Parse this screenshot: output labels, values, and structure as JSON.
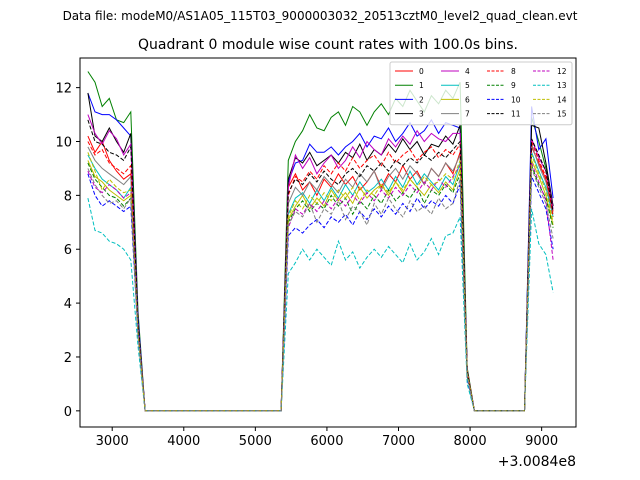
{
  "chart_data": {
    "type": "line",
    "suptitle": "Data file: modeM0/AS1A05_115T03_9000003032_20513cztM0_level2_quad_clean.evt",
    "title": "Quadrant 0 module wise count rates with 100.0s bins.",
    "xlabel": "",
    "ylabel": "",
    "x_offset_label": "+3.0084e8",
    "xlim": [
      2550,
      9480
    ],
    "ylim": [
      -0.6,
      13.1
    ],
    "xticks": [
      3000,
      4000,
      5000,
      6000,
      7000,
      8000,
      9000
    ],
    "yticks": [
      0,
      2,
      4,
      6,
      8,
      10,
      12
    ],
    "x": [
      2660,
      2760,
      2860,
      2960,
      3060,
      3160,
      3260,
      3360,
      3460,
      3560,
      3660,
      3760,
      3860,
      3960,
      4060,
      4160,
      4260,
      4360,
      4460,
      4560,
      4660,
      4760,
      4860,
      4960,
      5060,
      5160,
      5260,
      5360,
      5460,
      5560,
      5660,
      5760,
      5860,
      5960,
      6060,
      6160,
      6260,
      6360,
      6460,
      6560,
      6660,
      6760,
      6860,
      6960,
      7060,
      7160,
      7260,
      7360,
      7460,
      7560,
      7660,
      7760,
      7860,
      7960,
      8060,
      8160,
      8260,
      8360,
      8460,
      8560,
      8660,
      8760,
      8860,
      8960,
      9060,
      9160
    ],
    "legend_position": "top-right",
    "legend_columns": 4,
    "series": [
      {
        "name": "0",
        "color": "#ff0000",
        "dash": "solid",
        "values": [
          10.2,
          9.6,
          10.0,
          9.3,
          8.9,
          8.6,
          8.8,
          3.2,
          0,
          0,
          0,
          0,
          0,
          0,
          0,
          0,
          0,
          0,
          0,
          0,
          0,
          0,
          0,
          0,
          0,
          0,
          0,
          0,
          8.3,
          8.8,
          8.2,
          8.5,
          8.0,
          8.6,
          8.3,
          8.8,
          8.4,
          8.7,
          8.2,
          8.5,
          8.9,
          8.3,
          8.8,
          8.5,
          9.1,
          8.6,
          8.9,
          8.4,
          9.0,
          8.7,
          9.2,
          8.8,
          9.6,
          1.4,
          0,
          0,
          0,
          0,
          0,
          0,
          0,
          0,
          9.8,
          9.2,
          8.6,
          7.4
        ]
      },
      {
        "name": "1",
        "color": "#008000",
        "dash": "solid",
        "values": [
          12.6,
          12.2,
          11.3,
          11.6,
          10.8,
          10.7,
          11.1,
          3.7,
          0,
          0,
          0,
          0,
          0,
          0,
          0,
          0,
          0,
          0,
          0,
          0,
          0,
          0,
          0,
          0,
          0,
          0,
          0,
          0,
          9.3,
          10.0,
          10.4,
          11.0,
          10.5,
          10.4,
          10.9,
          11.1,
          10.6,
          11.3,
          11.1,
          10.6,
          11.1,
          11.4,
          11.0,
          11.6,
          11.3,
          11.9,
          11.5,
          11.1,
          11.7,
          11.4,
          11.9,
          11.6,
          12.2,
          1.6,
          0,
          0,
          0,
          0,
          0,
          0,
          0,
          0,
          10.9,
          10.0,
          9.0,
          7.6
        ]
      },
      {
        "name": "2",
        "color": "#0000ff",
        "dash": "solid",
        "values": [
          11.8,
          11.1,
          11.0,
          11.0,
          10.8,
          10.5,
          10.2,
          3.5,
          0,
          0,
          0,
          0,
          0,
          0,
          0,
          0,
          0,
          0,
          0,
          0,
          0,
          0,
          0,
          0,
          0,
          0,
          0,
          0,
          8.5,
          9.2,
          9.3,
          9.9,
          9.6,
          9.6,
          9.8,
          9.5,
          9.8,
          10.0,
          10.3,
          9.8,
          10.2,
          10.1,
          10.5,
          10.0,
          10.3,
          10.7,
          10.2,
          10.4,
          10.8,
          10.3,
          10.7,
          10.6,
          10.5,
          1.5,
          0,
          0,
          0,
          0,
          0,
          0,
          0,
          0,
          11.3,
          9.7,
          10.1,
          7.9
        ]
      },
      {
        "name": "3",
        "color": "#000000",
        "dash": "solid",
        "values": [
          11.8,
          10.2,
          10.0,
          10.5,
          10.0,
          9.6,
          10.3,
          3.3,
          0,
          0,
          0,
          0,
          0,
          0,
          0,
          0,
          0,
          0,
          0,
          0,
          0,
          0,
          0,
          0,
          0,
          0,
          0,
          0,
          8.6,
          9.4,
          9.2,
          9.6,
          9.1,
          9.3,
          9.5,
          9.2,
          9.6,
          9.4,
          9.9,
          9.3,
          9.7,
          9.5,
          9.9,
          9.6,
          10.1,
          9.7,
          10.0,
          9.5,
          9.9,
          9.8,
          10.2,
          9.9,
          10.6,
          1.5,
          0,
          0,
          0,
          0,
          0,
          0,
          0,
          0,
          10.6,
          10.5,
          9.2,
          7.6
        ]
      },
      {
        "name": "4",
        "color": "#bf00bf",
        "dash": "solid",
        "values": [
          11.0,
          10.3,
          9.9,
          10.4,
          10.1,
          9.5,
          9.9,
          3.3,
          0,
          0,
          0,
          0,
          0,
          0,
          0,
          0,
          0,
          0,
          0,
          0,
          0,
          0,
          0,
          0,
          0,
          0,
          0,
          0,
          8.3,
          9.5,
          9.0,
          9.4,
          8.8,
          9.2,
          9.5,
          9.0,
          9.3,
          9.8,
          9.4,
          10.0,
          9.7,
          9.5,
          10.1,
          9.8,
          10.2,
          9.9,
          10.4,
          10.0,
          10.3,
          10.1,
          10.0,
          10.3,
          10.3,
          1.5,
          0,
          0,
          0,
          0,
          0,
          0,
          0,
          0,
          10.1,
          9.4,
          8.9,
          7.5
        ]
      },
      {
        "name": "5",
        "color": "#00bfbf",
        "dash": "solid",
        "values": [
          9.5,
          9.0,
          8.6,
          8.4,
          8.2,
          7.9,
          8.3,
          3.0,
          0,
          0,
          0,
          0,
          0,
          0,
          0,
          0,
          0,
          0,
          0,
          0,
          0,
          0,
          0,
          0,
          0,
          0,
          0,
          0,
          7.3,
          7.9,
          8.1,
          7.7,
          8.2,
          7.8,
          8.3,
          7.9,
          8.4,
          8.0,
          8.5,
          8.1,
          8.3,
          8.6,
          8.2,
          8.7,
          8.3,
          8.9,
          8.4,
          8.8,
          8.5,
          8.2,
          8.7,
          8.4,
          9.2,
          1.3,
          0,
          0,
          0,
          0,
          0,
          0,
          0,
          0,
          9.6,
          8.9,
          8.3,
          7.2
        ]
      },
      {
        "name": "6",
        "color": "#bfbf00",
        "dash": "solid",
        "values": [
          9.3,
          8.7,
          8.5,
          8.2,
          8.0,
          7.8,
          8.0,
          2.9,
          0,
          0,
          0,
          0,
          0,
          0,
          0,
          0,
          0,
          0,
          0,
          0,
          0,
          0,
          0,
          0,
          0,
          0,
          0,
          0,
          7.1,
          7.6,
          8.0,
          7.5,
          7.9,
          7.6,
          8.2,
          7.8,
          8.1,
          7.7,
          8.3,
          7.9,
          8.2,
          8.4,
          8.0,
          8.5,
          8.1,
          8.6,
          8.3,
          8.0,
          8.4,
          8.1,
          8.5,
          8.2,
          9.0,
          1.3,
          0,
          0,
          0,
          0,
          0,
          0,
          0,
          0,
          9.3,
          8.7,
          8.0,
          6.9
        ]
      },
      {
        "name": "7",
        "color": "#808080",
        "dash": "solid",
        "values": [
          9.8,
          9.3,
          9.0,
          8.8,
          8.6,
          8.4,
          8.7,
          3.1,
          0,
          0,
          0,
          0,
          0,
          0,
          0,
          0,
          0,
          0,
          0,
          0,
          0,
          0,
          0,
          0,
          0,
          0,
          0,
          0,
          7.7,
          8.3,
          8.0,
          8.5,
          8.2,
          8.7,
          8.4,
          8.1,
          8.6,
          8.3,
          8.8,
          8.5,
          8.9,
          8.2,
          8.7,
          9.0,
          8.6,
          9.1,
          8.8,
          8.4,
          9.0,
          8.7,
          9.2,
          8.9,
          9.5,
          1.4,
          0,
          0,
          0,
          0,
          0,
          0,
          0,
          0,
          9.9,
          9.1,
          8.5,
          7.3
        ]
      },
      {
        "name": "8",
        "color": "#ff0000",
        "dash": "dashed",
        "values": [
          10.0,
          9.5,
          9.7,
          9.2,
          9.0,
          8.8,
          9.1,
          3.2,
          0,
          0,
          0,
          0,
          0,
          0,
          0,
          0,
          0,
          0,
          0,
          0,
          0,
          0,
          0,
          0,
          0,
          0,
          0,
          0,
          8.0,
          8.7,
          8.5,
          8.9,
          8.6,
          9.1,
          8.8,
          9.2,
          8.9,
          9.4,
          9.0,
          9.3,
          9.5,
          9.1,
          9.6,
          9.2,
          9.5,
          9.7,
          9.3,
          9.6,
          9.8,
          9.4,
          9.7,
          9.5,
          9.9,
          1.5,
          0,
          0,
          0,
          0,
          0,
          0,
          0,
          0,
          10.0,
          9.3,
          8.7,
          7.2
        ]
      },
      {
        "name": "9",
        "color": "#008000",
        "dash": "dashed",
        "values": [
          9.2,
          8.6,
          8.3,
          8.0,
          7.9,
          7.6,
          7.9,
          2.9,
          0,
          0,
          0,
          0,
          0,
          0,
          0,
          0,
          0,
          0,
          0,
          0,
          0,
          0,
          0,
          0,
          0,
          0,
          0,
          0,
          7.0,
          7.5,
          7.8,
          7.4,
          7.7,
          7.5,
          8.0,
          7.6,
          7.9,
          7.3,
          7.8,
          7.5,
          8.0,
          7.7,
          8.2,
          7.8,
          8.1,
          7.9,
          8.3,
          7.7,
          8.2,
          8.0,
          8.4,
          8.1,
          8.8,
          1.3,
          0,
          0,
          0,
          0,
          0,
          0,
          0,
          0,
          9.1,
          8.4,
          7.9,
          6.8
        ]
      },
      {
        "name": "10",
        "color": "#0000ff",
        "dash": "dashed",
        "values": [
          8.8,
          8.0,
          7.6,
          7.8,
          7.6,
          7.4,
          7.6,
          2.8,
          0,
          0,
          0,
          0,
          0,
          0,
          0,
          0,
          0,
          0,
          0,
          0,
          0,
          0,
          0,
          0,
          0,
          0,
          0,
          0,
          6.5,
          6.8,
          6.6,
          6.9,
          7.1,
          6.8,
          7.2,
          7.0,
          7.3,
          6.9,
          7.4,
          7.1,
          7.5,
          7.2,
          7.6,
          7.3,
          7.7,
          7.4,
          7.9,
          7.5,
          7.8,
          7.6,
          8.0,
          7.7,
          8.4,
          1.2,
          0,
          0,
          0,
          0,
          0,
          0,
          0,
          0,
          8.7,
          8.1,
          7.5,
          6.0
        ]
      },
      {
        "name": "11",
        "color": "#000000",
        "dash": "dashed",
        "values": [
          10.8,
          10.0,
          9.9,
          9.6,
          9.5,
          9.3,
          9.8,
          3.3,
          0,
          0,
          0,
          0,
          0,
          0,
          0,
          0,
          0,
          0,
          0,
          0,
          0,
          0,
          0,
          0,
          0,
          0,
          0,
          0,
          8.1,
          8.6,
          8.4,
          8.8,
          8.5,
          8.9,
          8.6,
          8.4,
          8.8,
          9.0,
          8.7,
          9.1,
          8.9,
          9.2,
          8.9,
          9.3,
          9.1,
          9.4,
          9.2,
          9.5,
          9.3,
          9.6,
          9.4,
          9.7,
          10.0,
          1.5,
          0,
          0,
          0,
          0,
          0,
          0,
          0,
          0,
          10.1,
          9.5,
          8.9,
          7.4
        ]
      },
      {
        "name": "12",
        "color": "#bf00bf",
        "dash": "dashed",
        "values": [
          8.9,
          8.3,
          8.1,
          8.4,
          8.2,
          7.9,
          8.1,
          2.9,
          0,
          0,
          0,
          0,
          0,
          0,
          0,
          0,
          0,
          0,
          0,
          0,
          0,
          0,
          0,
          0,
          0,
          0,
          0,
          0,
          6.8,
          7.5,
          7.3,
          7.7,
          7.4,
          7.8,
          7.5,
          7.9,
          7.6,
          8.0,
          7.7,
          8.1,
          7.8,
          8.2,
          7.9,
          8.3,
          8.0,
          8.4,
          8.1,
          8.5,
          8.2,
          8.6,
          8.3,
          8.7,
          9.1,
          1.3,
          0,
          0,
          0,
          0,
          0,
          0,
          0,
          0,
          9.2,
          8.5,
          7.8,
          5.6
        ]
      },
      {
        "name": "13",
        "color": "#00bfbf",
        "dash": "dashed",
        "values": [
          7.9,
          6.7,
          6.6,
          6.3,
          6.2,
          6.0,
          5.6,
          2.4,
          0,
          0,
          0,
          0,
          0,
          0,
          0,
          0,
          0,
          0,
          0,
          0,
          0,
          0,
          0,
          0,
          0,
          0,
          0,
          0,
          5.1,
          5.5,
          6.0,
          5.6,
          6.0,
          5.7,
          5.4,
          6.3,
          5.6,
          5.9,
          5.3,
          5.7,
          6.0,
          5.7,
          6.1,
          5.8,
          5.5,
          6.2,
          5.6,
          5.9,
          6.4,
          5.8,
          6.5,
          6.6,
          7.2,
          1.0,
          0,
          0,
          0,
          0,
          0,
          0,
          0,
          0,
          7.5,
          6.2,
          5.8,
          4.4
        ]
      },
      {
        "name": "14",
        "color": "#bfbf00",
        "dash": "dashed",
        "values": [
          9.6,
          8.9,
          8.2,
          8.6,
          8.3,
          8.1,
          8.2,
          2.9,
          0,
          0,
          0,
          0,
          0,
          0,
          0,
          0,
          0,
          0,
          0,
          0,
          0,
          0,
          0,
          0,
          0,
          0,
          0,
          0,
          7.2,
          7.8,
          7.5,
          8.0,
          7.7,
          8.1,
          7.8,
          8.2,
          7.9,
          8.3,
          7.8,
          8.2,
          8.0,
          8.4,
          8.1,
          8.5,
          8.2,
          8.6,
          8.3,
          8.7,
          8.4,
          8.5,
          8.8,
          8.6,
          9.3,
          1.4,
          0,
          0,
          0,
          0,
          0,
          0,
          0,
          0,
          9.5,
          8.8,
          8.2,
          7.0
        ]
      },
      {
        "name": "15",
        "color": "#808080",
        "dash": "dashed",
        "values": [
          9.0,
          8.4,
          8.0,
          7.7,
          7.8,
          7.5,
          7.9,
          2.8,
          0,
          0,
          0,
          0,
          0,
          0,
          0,
          0,
          0,
          0,
          0,
          0,
          0,
          0,
          0,
          0,
          0,
          0,
          0,
          0,
          6.9,
          7.4,
          7.2,
          7.7,
          7.0,
          7.5,
          7.3,
          7.8,
          7.1,
          7.6,
          7.4,
          6.9,
          7.7,
          7.3,
          7.9,
          7.5,
          7.2,
          7.8,
          7.4,
          7.6,
          7.3,
          7.9,
          7.5,
          7.7,
          8.6,
          1.3,
          0,
          0,
          0,
          0,
          0,
          0,
          0,
          0,
          9.0,
          8.3,
          7.7,
          6.4
        ]
      }
    ]
  }
}
